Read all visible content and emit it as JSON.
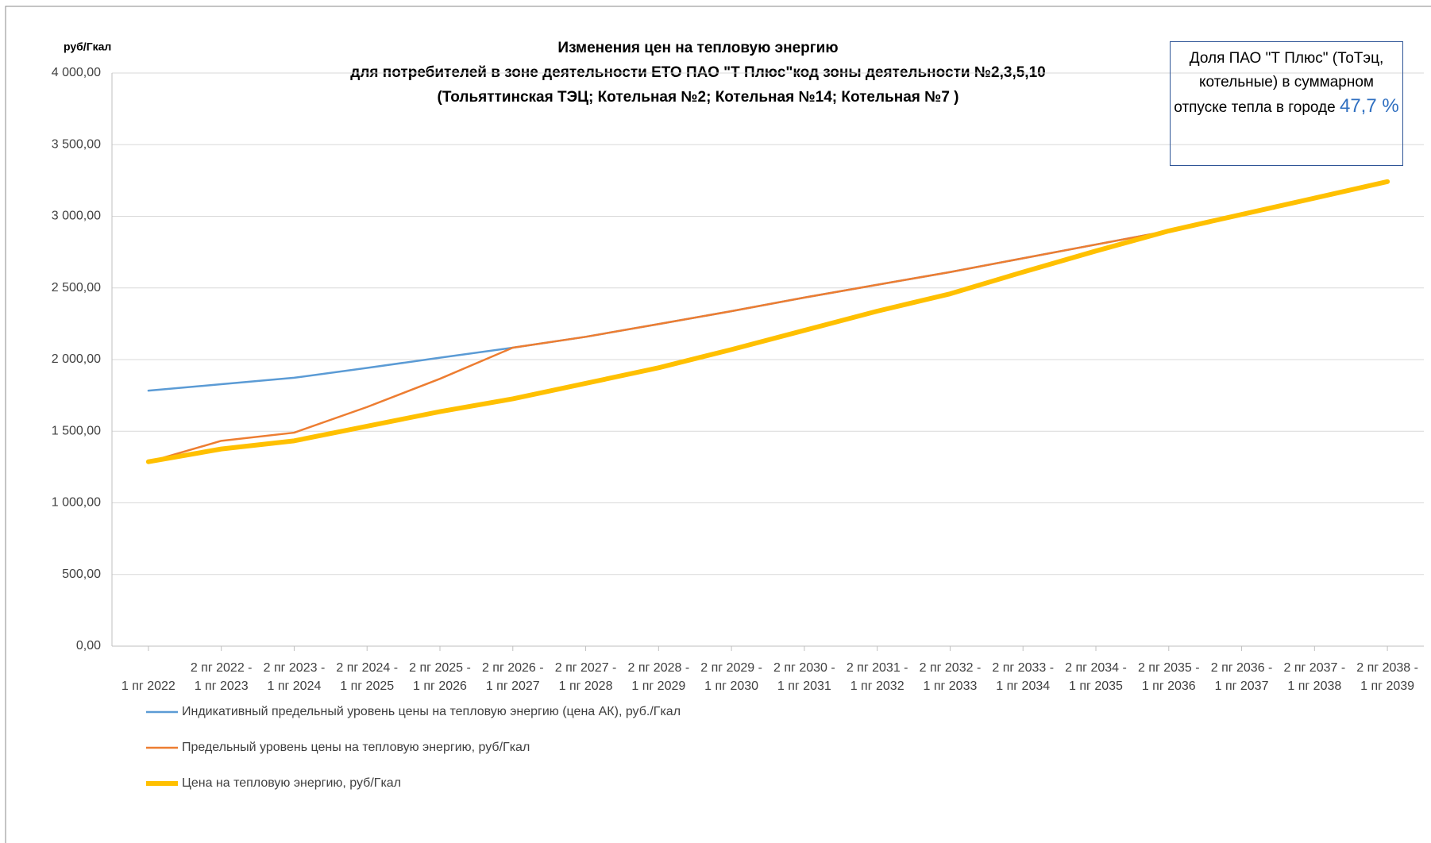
{
  "chart_data": {
    "type": "line",
    "title": [
      "Изменения цен на тепловую энергию",
      "для потребителей в зоне деятельности ЕТО ПАО \"Т Плюс\"код зоны деятельности №2,3,5,10",
      "(Тольяттинская ТЭЦ; Котельная №2; Котельная №14;  Котельная №7 )"
    ],
    "y_label": "руб/Гкал",
    "annotation": {
      "text": "Доля  ПАО \"Т Плюс\" (ТоТэц, котельные) в суммарном отпуске тепла в городе",
      "value_label": "47,7 %"
    },
    "categories": [
      "1 пг 2022",
      "2 пг 2022 - 1 пг 2023",
      "2 пг 2023 - 1 пг 2024",
      "2 пг 2024 - 1 пг 2025",
      "2 пг 2025 - 1 пг 2026",
      "2 пг 2026 - 1 пг 2027",
      "2 пг 2027 - 1 пг 2028",
      "2 пг 2028 - 1 пг 2029",
      "2 пг 2029 - 1 пг 2030",
      "2 пг 2030 - 1 пг 2031",
      "2 пг 2031 - 1 пг 2032",
      "2 пг 2032 - 1 пг 2033",
      "2 пг 2033 - 1 пг 2034",
      "2 пг 2034 - 1 пг 2035",
      "2 пг 2035 - 1 пг 2036",
      "2 пг 2036 - 1 пг 2037",
      "2 пг 2037 - 1 пг 2038",
      "2 пг 2038 - 1 пг 2039"
    ],
    "series": [
      {
        "name": "Индикативный предельный уровень цены на тепловую энергию  (цена АК), руб./Гкал",
        "color": "#5b9bd5",
        "width": 2.5,
        "values": [
          1783,
          1828,
          1873,
          1942,
          2013,
          2083,
          2159,
          2248,
          2338,
          2433,
          2522,
          2611,
          2707,
          2803,
          2898,
          3013,
          3127,
          3242
        ]
      },
      {
        "name": "Предельный уровень цены на тепловую энергию, руб/Гкал",
        "color": "#ed7d31",
        "width": 2.5,
        "values": [
          1285,
          1433,
          1490,
          1669,
          1866,
          2083,
          2159,
          2248,
          2338,
          2433,
          2522,
          2611,
          2707,
          2803,
          2898,
          3013,
          3127,
          3242
        ]
      },
      {
        "name": "Цена на тепловую энергию, руб/Гкал",
        "color": "#ffc000",
        "width": 6,
        "values": [
          1287,
          1376,
          1433,
          1535,
          1637,
          1726,
          1834,
          1943,
          2070,
          2204,
          2338,
          2459,
          2611,
          2758,
          2898,
          3013,
          3127,
          3242
        ]
      }
    ],
    "ylim": [
      0,
      4000
    ],
    "yticks": [
      {
        "value": 0,
        "label": "0,00"
      },
      {
        "value": 500,
        "label": "500,00"
      },
      {
        "value": 1000,
        "label": "1 000,00"
      },
      {
        "value": 1500,
        "label": "1 500,00"
      },
      {
        "value": 2000,
        "label": "2 000,00"
      },
      {
        "value": 2500,
        "label": "2 500,00"
      },
      {
        "value": 3000,
        "label": "3 000,00"
      },
      {
        "value": 3500,
        "label": "3 500,00"
      },
      {
        "value": 4000,
        "label": "4 000,00"
      }
    ],
    "grid": true
  }
}
